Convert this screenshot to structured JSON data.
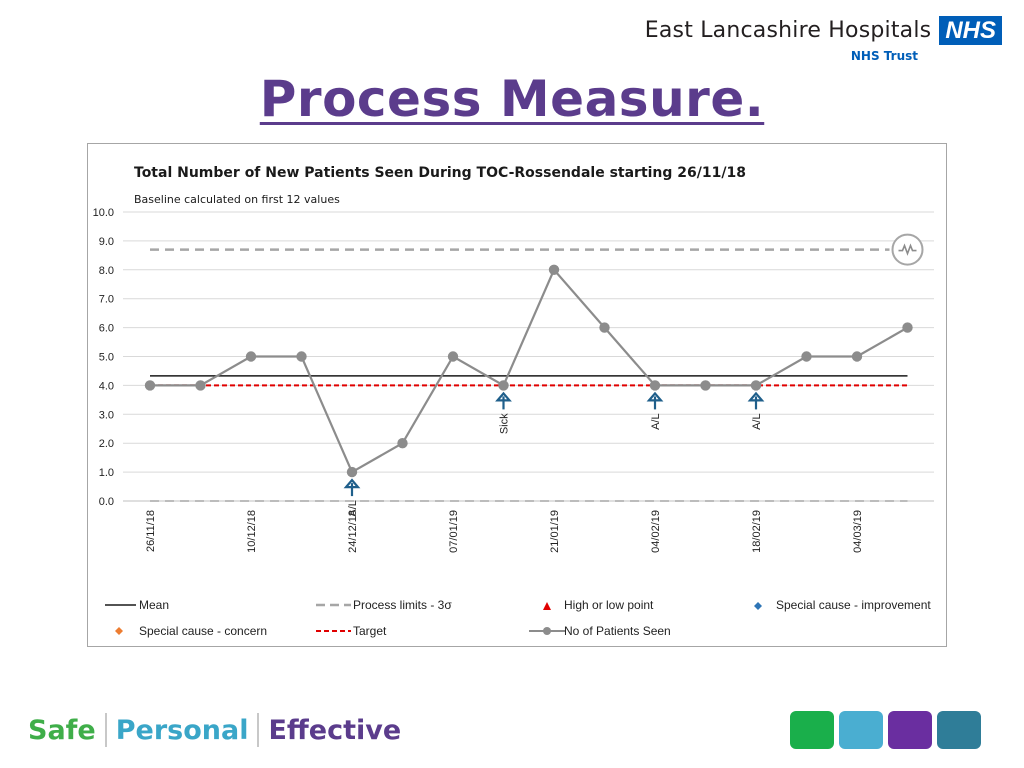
{
  "header": {
    "org_name": "East Lancashire Hospitals",
    "nhs_badge": "NHS",
    "org_sub": "NHS Trust",
    "title": "Process Measure."
  },
  "chart_data": {
    "type": "line",
    "title": "Total Number of New Patients Seen During TOC-Rossendale  starting 26/11/18",
    "subtitle": "Baseline calculated on first 12 values",
    "ylim": [
      0,
      10
    ],
    "yticks": [
      "0.0",
      "1.0",
      "2.0",
      "3.0",
      "4.0",
      "5.0",
      "6.0",
      "7.0",
      "8.0",
      "9.0",
      "10.0"
    ],
    "xtick_labels": [
      {
        "index": 0,
        "label": "26/11/18"
      },
      {
        "index": 2,
        "label": "10/12/18"
      },
      {
        "index": 4,
        "label": "24/12/18"
      },
      {
        "index": 6,
        "label": "07/01/19"
      },
      {
        "index": 8,
        "label": "21/01/19"
      },
      {
        "index": 10,
        "label": "04/02/19"
      },
      {
        "index": 12,
        "label": "18/02/19"
      },
      {
        "index": 14,
        "label": "04/03/19"
      }
    ],
    "series": [
      {
        "name": "No of Patients Seen",
        "values": [
          4,
          4,
          5,
          5,
          1,
          2,
          5,
          4,
          8,
          6,
          4,
          4,
          4,
          5,
          5,
          6
        ]
      }
    ],
    "mean": 4.33,
    "target": 4,
    "upper_process_limit": 8.7,
    "lower_process_limit": 0,
    "annotations": [
      {
        "index": 4,
        "label": "A/L"
      },
      {
        "index": 7,
        "label": "Sick"
      },
      {
        "index": 10,
        "label": "A/L"
      },
      {
        "index": 12,
        "label": "A/L"
      }
    ],
    "legend": [
      {
        "label": "Mean",
        "style": "solid-black"
      },
      {
        "label": "Process limits - 3σ",
        "style": "dashed-grey"
      },
      {
        "label": "High or low point",
        "style": "red-triangle"
      },
      {
        "label": "Special cause - improvement",
        "style": "blue-diamond"
      },
      {
        "label": "Special cause - concern",
        "style": "orange-diamond"
      },
      {
        "label": "Target",
        "style": "dashed-red"
      },
      {
        "label": "No of Patients Seen",
        "style": "grey-line-marker"
      }
    ],
    "icon": "variation-icon",
    "colors": {
      "series": "#8c8c8c",
      "mean": "#1a1a1a",
      "target": "#e00000",
      "limits": "#a6a6a6",
      "arrow": "#1f5f8b",
      "improvement": "#2e75b6",
      "concern": "#ed7d31",
      "highlow": "#e00000"
    }
  },
  "footer": {
    "safe": "Safe",
    "personal": "Personal",
    "effective": "Effective",
    "blocks": [
      "#1aaf4b",
      "#4aaed1",
      "#6a2ea0",
      "#2f7d98"
    ]
  }
}
